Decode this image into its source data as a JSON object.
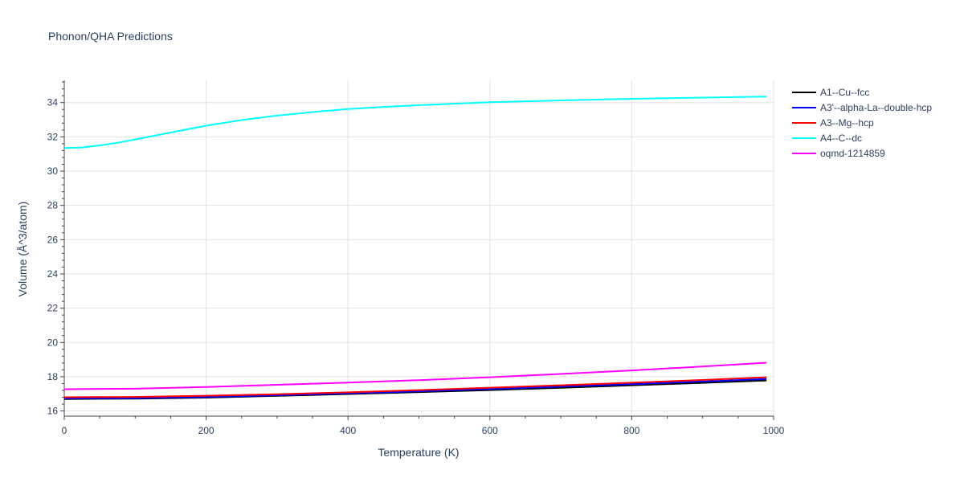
{
  "chart_data": {
    "type": "line",
    "title": "Phonon/QHA Predictions",
    "xlabel": "Temperature (K)",
    "ylabel": "Volume (Å^3/atom)",
    "xlim": [
      0,
      1000
    ],
    "ylim": [
      15.7,
      35.3
    ],
    "x_ticks": [
      0,
      200,
      400,
      600,
      800,
      1000
    ],
    "y_ticks": [
      16,
      18,
      20,
      22,
      24,
      26,
      28,
      30,
      32,
      34
    ],
    "grid": true,
    "legend_position": "right",
    "series": [
      {
        "name": "A1--Cu--fcc",
        "color": "#000000",
        "x": [
          0,
          100,
          200,
          300,
          400,
          500,
          600,
          700,
          800,
          900,
          990
        ],
        "values": [
          16.7,
          16.72,
          16.78,
          16.88,
          16.99,
          17.1,
          17.22,
          17.35,
          17.5,
          17.64,
          17.78
        ]
      },
      {
        "name": "A3'--alpha-La--double-hcp",
        "color": "#0000ff",
        "x": [
          0,
          100,
          200,
          300,
          400,
          500,
          600,
          700,
          800,
          900,
          990
        ],
        "values": [
          16.73,
          16.75,
          16.82,
          16.92,
          17.03,
          17.15,
          17.28,
          17.42,
          17.57,
          17.72,
          17.87
        ]
      },
      {
        "name": "A3--Mg--hcp",
        "color": "#ff0000",
        "x": [
          0,
          100,
          200,
          300,
          400,
          500,
          600,
          700,
          800,
          900,
          990
        ],
        "values": [
          16.8,
          16.82,
          16.89,
          16.98,
          17.09,
          17.22,
          17.36,
          17.5,
          17.65,
          17.81,
          17.97
        ]
      },
      {
        "name": "A4--C--dc",
        "color": "#00ffff",
        "x": [
          0,
          25,
          50,
          75,
          100,
          150,
          200,
          250,
          300,
          350,
          400,
          450,
          500,
          600,
          700,
          800,
          900,
          990
        ],
        "values": [
          31.35,
          31.38,
          31.5,
          31.65,
          31.85,
          32.25,
          32.65,
          32.98,
          33.24,
          33.45,
          33.62,
          33.75,
          33.85,
          34.02,
          34.13,
          34.22,
          34.29,
          34.35
        ]
      },
      {
        "name": "oqmd-1214859",
        "color": "#ff00ff",
        "x": [
          0,
          100,
          200,
          300,
          400,
          500,
          600,
          700,
          800,
          900,
          990
        ],
        "values": [
          17.27,
          17.3,
          17.4,
          17.53,
          17.66,
          17.8,
          17.97,
          18.16,
          18.37,
          18.6,
          18.82
        ]
      }
    ]
  }
}
